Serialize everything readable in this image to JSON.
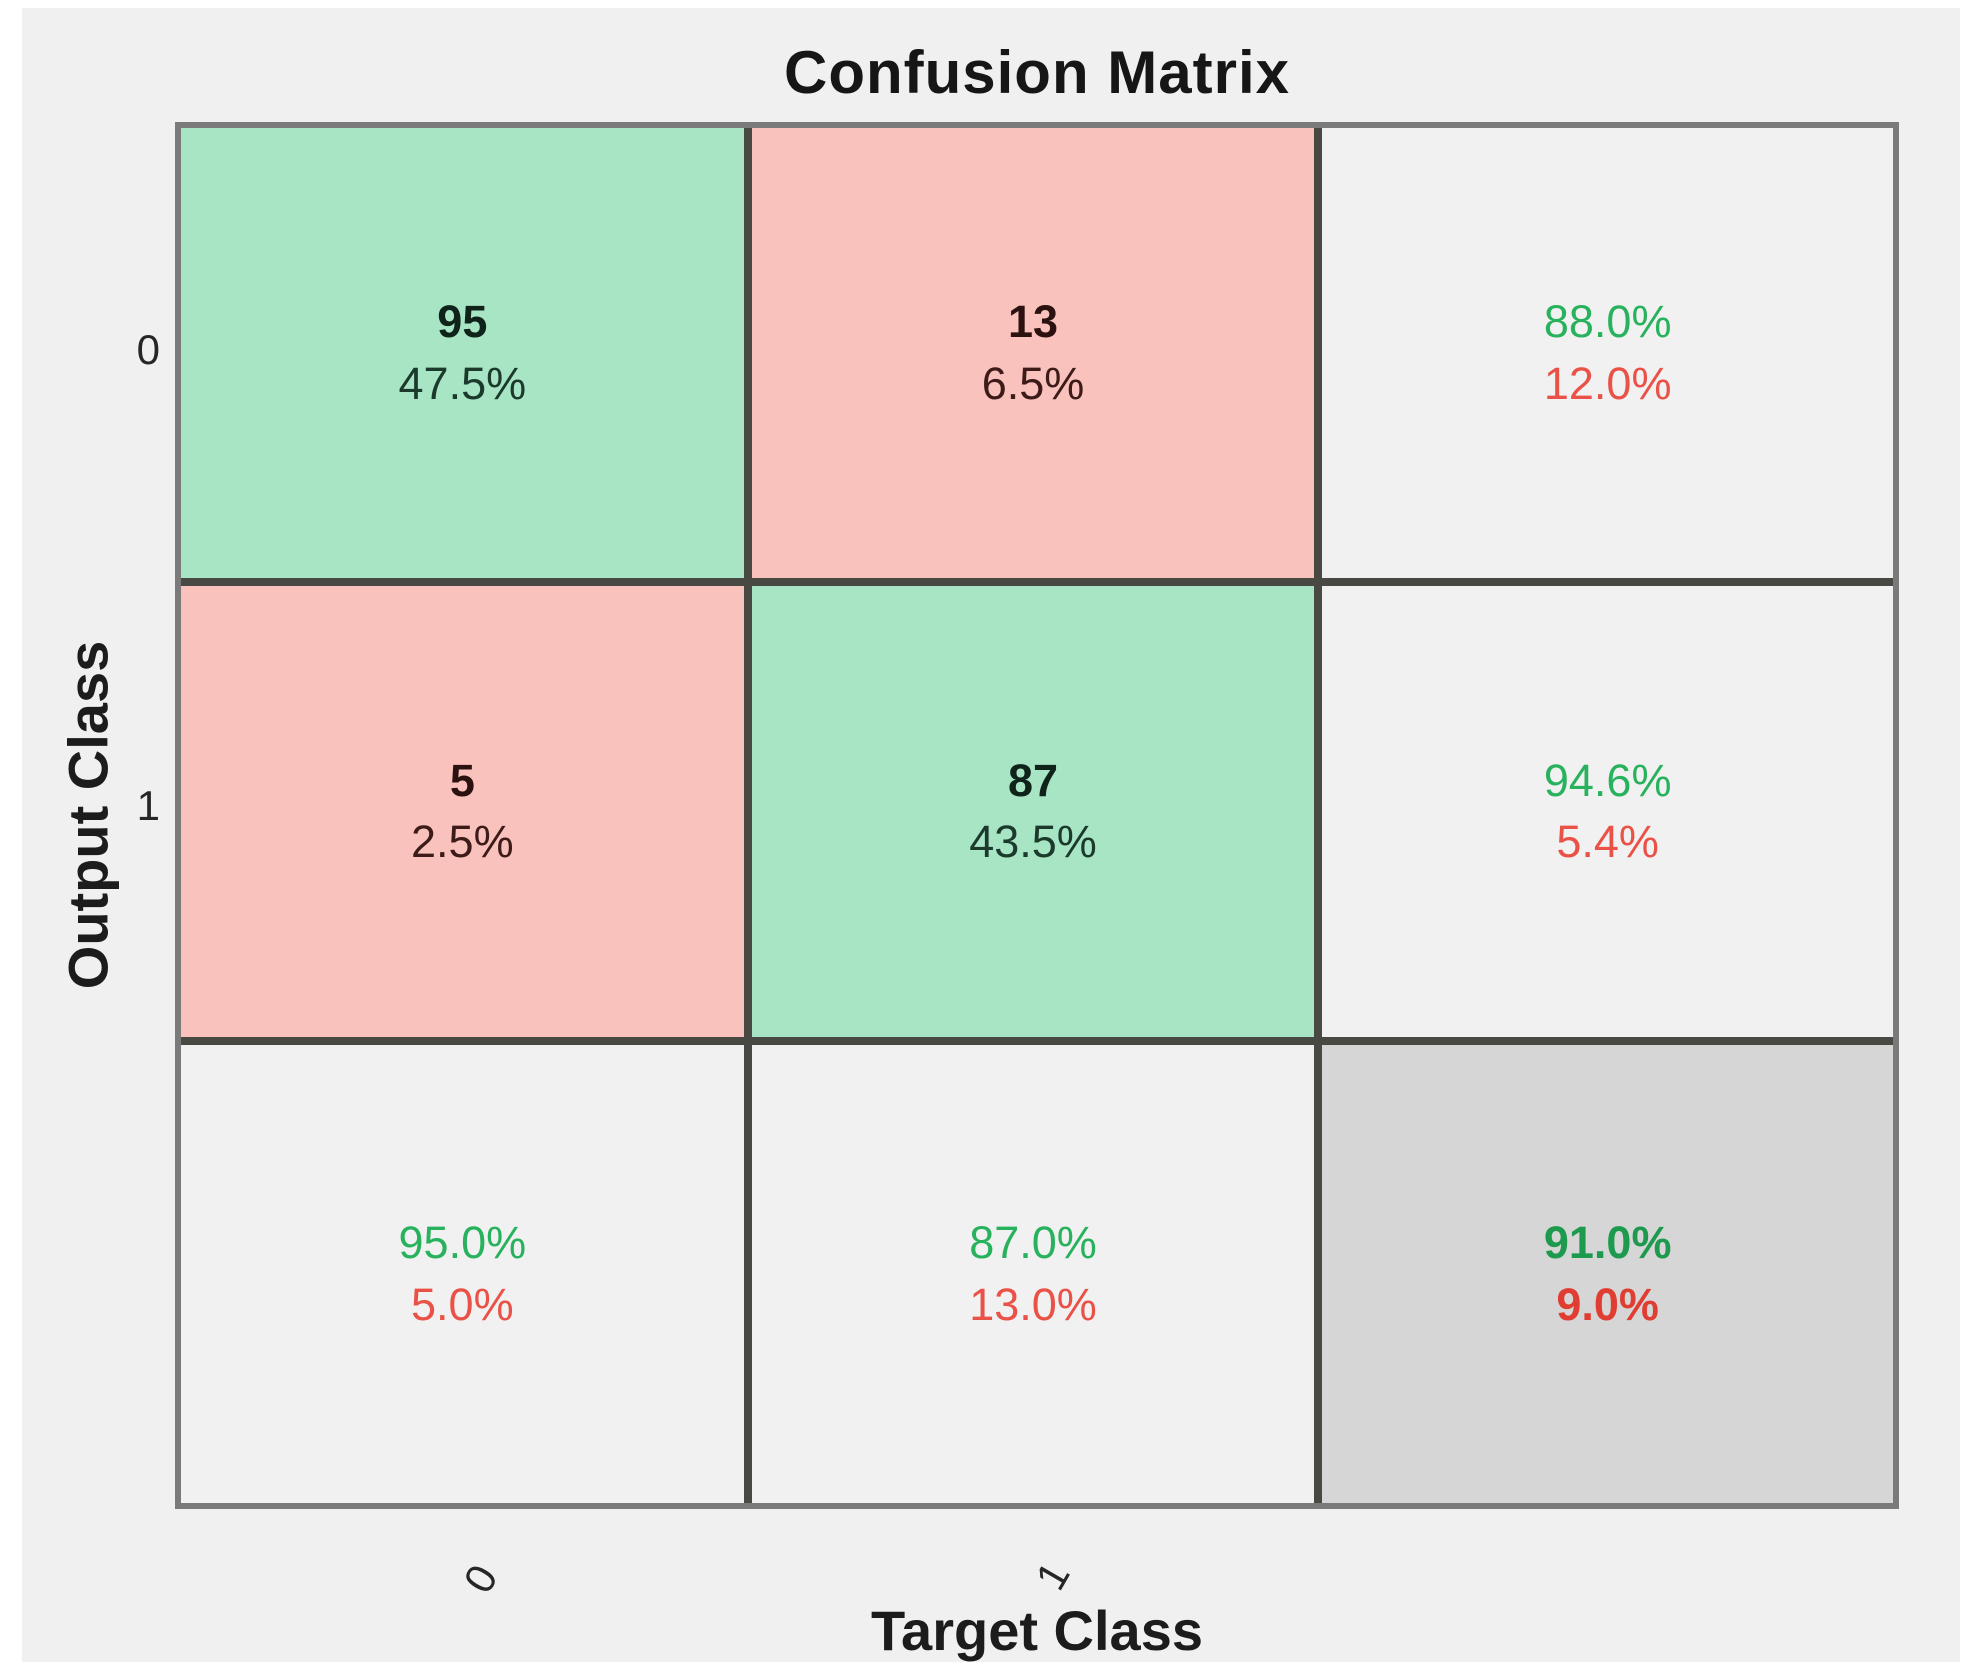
{
  "title": "Confusion Matrix",
  "axes": {
    "y_label": "Output Class",
    "x_label": "Target Class",
    "y_ticks": [
      "0",
      "1"
    ],
    "x_ticks": [
      "0",
      "1"
    ]
  },
  "colors": {
    "correct_cell_fill": "#a8e5c5",
    "incorrect_cell_fill": "#fac2bc",
    "summary_cell_fill": "#f0f1f0",
    "total_cell_fill": "#d5d6d5",
    "correct_text": "#28b25d",
    "incorrect_text": "#ea5147",
    "count_text": "#141414",
    "grid_line": "#494944",
    "outer_border": "#7a7a7a",
    "figure_background": "#eff0ef"
  },
  "cells": [
    {
      "line1": "95",
      "line2": "47.5%",
      "bg": "#a8e5c5",
      "c1": "#10231a",
      "c2": "#1c3a2c"
    },
    {
      "line1": "13",
      "line2": "6.5%",
      "bg": "#fac2bc",
      "c1": "#2b1210",
      "c2": "#3c1b18"
    },
    {
      "line1": "88.0%",
      "line2": "12.0%",
      "bg": "#f0f1f0",
      "c1": "#28b25d",
      "c2": "#ea5147"
    },
    {
      "line1": "5",
      "line2": "2.5%",
      "bg": "#fac2bc",
      "c1": "#2b1210",
      "c2": "#3c1b18"
    },
    {
      "line1": "87",
      "line2": "43.5%",
      "bg": "#a8e5c5",
      "c1": "#10231a",
      "c2": "#1c3a2c"
    },
    {
      "line1": "94.6%",
      "line2": "5.4%",
      "bg": "#f0f1f0",
      "c1": "#28b25d",
      "c2": "#ea5147"
    },
    {
      "line1": "95.0%",
      "line2": "5.0%",
      "bg": "#f0f1f0",
      "c1": "#28b25d",
      "c2": "#ea5147"
    },
    {
      "line1": "87.0%",
      "line2": "13.0%",
      "bg": "#f0f1f0",
      "c1": "#28b25d",
      "c2": "#ea5147"
    },
    {
      "line1": "91.0%",
      "line2": "9.0%",
      "bg": "#d5d6d5",
      "c1": "#1d9a4e",
      "c2": "#e03d33"
    }
  ],
  "chart_data": {
    "type": "heatmap",
    "subtype": "confusion-matrix",
    "title": "Confusion Matrix",
    "xlabel": "Target Class",
    "ylabel": "Output Class",
    "classes": [
      "0",
      "1"
    ],
    "matrix_counts": [
      [
        95,
        13
      ],
      [
        5,
        87
      ]
    ],
    "matrix_percent": [
      [
        "47.5%",
        "6.5%"
      ],
      [
        "2.5%",
        "43.5%"
      ]
    ],
    "row_summary": [
      {
        "correct": "88.0%",
        "incorrect": "12.0%"
      },
      {
        "correct": "94.6%",
        "incorrect": "5.4%"
      }
    ],
    "column_summary": [
      {
        "correct": "95.0%",
        "incorrect": "5.0%"
      },
      {
        "correct": "87.0%",
        "incorrect": "13.0%"
      }
    ],
    "overall_accuracy": {
      "correct": "91.0%",
      "incorrect": "9.0%"
    },
    "legend_position": "none",
    "grid": true
  }
}
